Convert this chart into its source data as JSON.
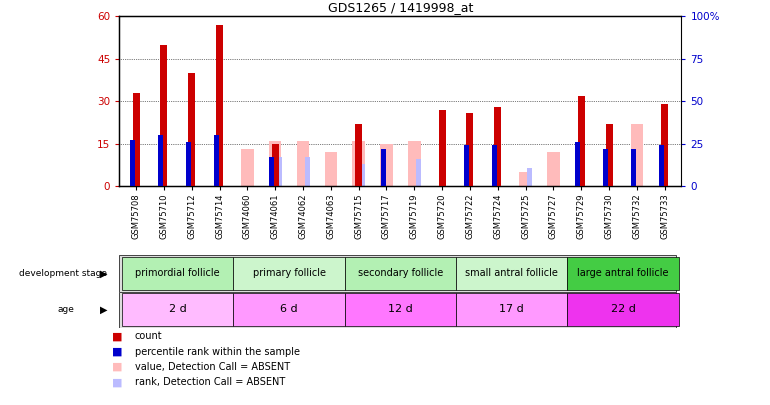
{
  "title": "GDS1265 / 1419998_at",
  "samples": [
    "GSM75708",
    "GSM75710",
    "GSM75712",
    "GSM75714",
    "GSM74060",
    "GSM74061",
    "GSM74062",
    "GSM74063",
    "GSM75715",
    "GSM75717",
    "GSM75719",
    "GSM75720",
    "GSM75722",
    "GSM75724",
    "GSM75725",
    "GSM75727",
    "GSM75729",
    "GSM75730",
    "GSM75732",
    "GSM75733"
  ],
  "count": [
    33,
    50,
    40,
    57,
    0,
    15,
    0,
    0,
    22,
    0,
    0,
    27,
    26,
    28,
    0,
    0,
    32,
    22,
    0,
    29
  ],
  "percentile": [
    27,
    30,
    26,
    30,
    0,
    17,
    0,
    0,
    0,
    22,
    0,
    0,
    24,
    24,
    0,
    0,
    26,
    22,
    22,
    24
  ],
  "absent_value": [
    0,
    0,
    0,
    0,
    13,
    16,
    16,
    12,
    16,
    15,
    16,
    0,
    0,
    0,
    5,
    12,
    0,
    0,
    22,
    0
  ],
  "absent_rank": [
    0,
    0,
    0,
    0,
    0,
    17,
    17,
    0,
    13,
    0,
    16,
    0,
    0,
    0,
    11,
    0,
    0,
    0,
    0,
    0
  ],
  "groups": [
    {
      "label": "primordial follicle",
      "start": 0,
      "end": 4,
      "color": "#b3f0b3"
    },
    {
      "label": "primary follicle",
      "start": 4,
      "end": 8,
      "color": "#ccf5cc"
    },
    {
      "label": "secondary follicle",
      "start": 8,
      "end": 12,
      "color": "#b3f0b3"
    },
    {
      "label": "small antral follicle",
      "start": 12,
      "end": 16,
      "color": "#ccf5cc"
    },
    {
      "label": "large antral follicle",
      "start": 16,
      "end": 20,
      "color": "#44cc44"
    }
  ],
  "ages": [
    {
      "label": "2 d",
      "start": 0,
      "end": 4,
      "color": "#ffbbff"
    },
    {
      "label": "6 d",
      "start": 4,
      "end": 8,
      "color": "#ff99ff"
    },
    {
      "label": "12 d",
      "start": 8,
      "end": 12,
      "color": "#ff77ff"
    },
    {
      "label": "17 d",
      "start": 12,
      "end": 16,
      "color": "#ff99ff"
    },
    {
      "label": "22 d",
      "start": 16,
      "end": 20,
      "color": "#ee33ee"
    }
  ],
  "ylim_left": [
    0,
    60
  ],
  "ylim_right": [
    0,
    100
  ],
  "yticks_left": [
    0,
    15,
    30,
    45,
    60
  ],
  "yticks_right": [
    0,
    25,
    50,
    75,
    100
  ],
  "color_count": "#cc0000",
  "color_percentile": "#0000cc",
  "color_absent_value": "#ffbbbb",
  "color_absent_rank": "#bbbbff"
}
